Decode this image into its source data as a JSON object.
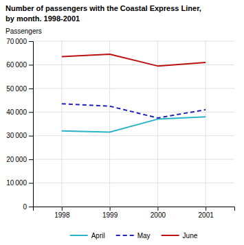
{
  "chart_data": {
    "type": "line",
    "title": "Number of passengers with the Coastal Express Liner,",
    "subtitle": "by month. 1998-2001",
    "ylabel": "Passengers",
    "x": [
      1998,
      1999,
      2000,
      2001
    ],
    "xlim": [
      1997.4,
      2001.6
    ],
    "xticks": [
      1998,
      1999,
      2000,
      2001
    ],
    "ylim": [
      0,
      70000
    ],
    "yticks": [
      0,
      {
        "value": 10000,
        "label": "10 000"
      },
      {
        "value": 20000,
        "label": "20 000"
      },
      {
        "value": 30000,
        "label": "30 000"
      },
      {
        "value": 40000,
        "label": "40 000"
      },
      {
        "value": 50000,
        "label": "50 000"
      },
      {
        "value": 60000,
        "label": "60 000"
      },
      {
        "value": 70000,
        "label": "70 000"
      }
    ],
    "grid": true,
    "legend": "bottom",
    "series": [
      {
        "name": "April",
        "color": "#29B5C3",
        "line_style": "solid",
        "values": [
          32000,
          31500,
          37000,
          38000
        ]
      },
      {
        "name": "May",
        "color": "#2222BB",
        "line_style": "dashed",
        "values": [
          43500,
          42500,
          37500,
          41000
        ]
      },
      {
        "name": "June",
        "color": "#BB1111",
        "line_style": "solid",
        "values": [
          63500,
          64500,
          59500,
          61000
        ]
      }
    ]
  }
}
